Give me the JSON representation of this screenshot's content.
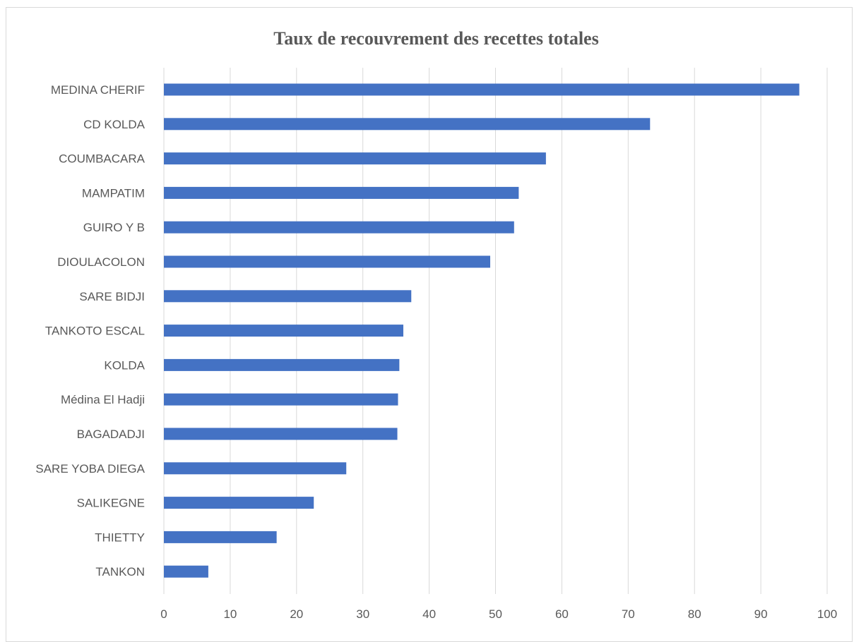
{
  "chart_data": {
    "type": "bar",
    "orientation": "horizontal",
    "title": "Taux de recouvrement des recettes totales",
    "xlabel": "",
    "ylabel": "",
    "xlim": [
      0,
      100
    ],
    "xticks": [
      "0",
      "10",
      "20",
      "30",
      "40",
      "50",
      "60",
      "70",
      "80",
      "90",
      "100"
    ],
    "grid": true,
    "legend": "none",
    "colors": {
      "bar": "#4472c4",
      "grid": "#d9d9d9",
      "text": "#595959"
    },
    "categories": [
      "MEDINA CHERIF",
      "CD KOLDA",
      "COUMBACARA",
      "MAMPATIM",
      "GUIRO Y B",
      "DIOULACOLON",
      "SARE BIDJI",
      "TANKOTO ESCAL",
      "KOLDA",
      "Médina El Hadji",
      "BAGADADJI",
      "SARE YOBA DIEGA",
      "SALIKEGNE",
      "THIETTY",
      "TANKON"
    ],
    "values": [
      95.8,
      73.3,
      57.6,
      53.5,
      52.8,
      49.2,
      37.3,
      36.1,
      35.5,
      35.3,
      35.2,
      27.5,
      22.6,
      17.0,
      6.7
    ]
  }
}
